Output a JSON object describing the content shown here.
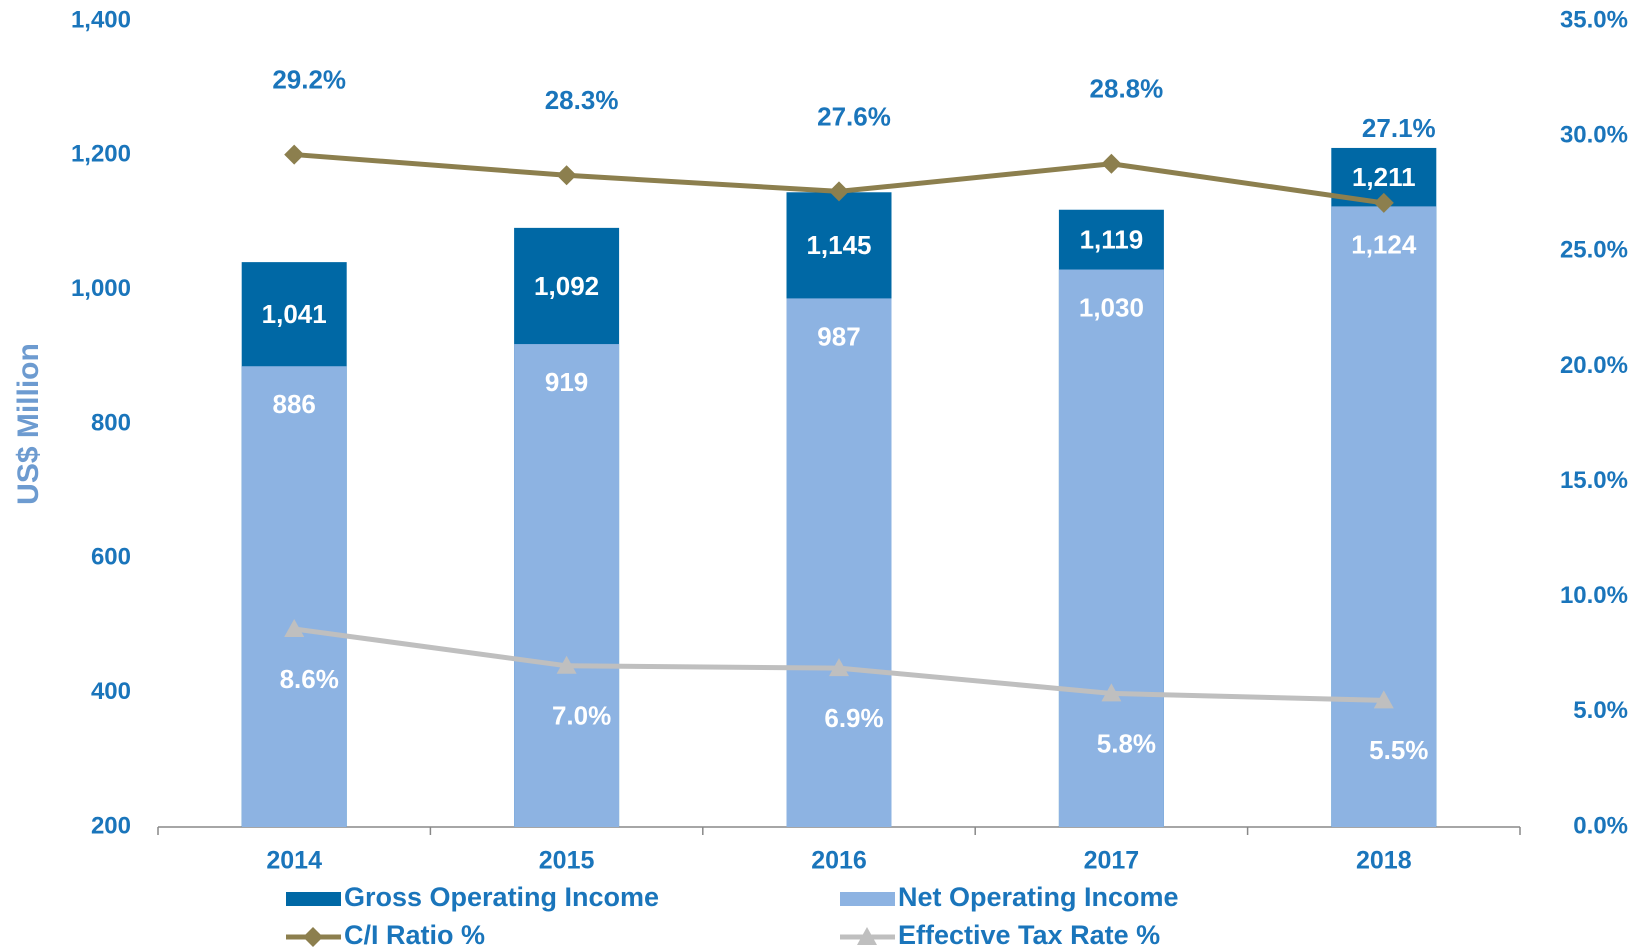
{
  "chart_data": {
    "type": "bar-line",
    "y_axis_label": "US$ Million",
    "categories": [
      "2014",
      "2015",
      "2016",
      "2017",
      "2018"
    ],
    "ylim": [
      200,
      1400
    ],
    "yticks": [
      {
        "value": 200,
        "label": "200"
      },
      {
        "value": 400,
        "label": "400"
      },
      {
        "value": 600,
        "label": "600"
      },
      {
        "value": 800,
        "label": "800"
      },
      {
        "value": 1000,
        "label": "1,000"
      },
      {
        "value": 1200,
        "label": "1,200"
      },
      {
        "value": 1400,
        "label": "1,400"
      }
    ],
    "y2lim": [
      0,
      35
    ],
    "y2ticks": [
      {
        "value": 0,
        "label": "0.0%"
      },
      {
        "value": 5,
        "label": "5.0%"
      },
      {
        "value": 10,
        "label": "10.0%"
      },
      {
        "value": 15,
        "label": "15.0%"
      },
      {
        "value": 20,
        "label": "20.0%"
      },
      {
        "value": 25,
        "label": "25.0%"
      },
      {
        "value": 30,
        "label": "30.0%"
      },
      {
        "value": 35,
        "label": "35.0%"
      }
    ],
    "series": [
      {
        "name": "Gross Operating Income",
        "type": "bar",
        "color": "#0068a5",
        "values": [
          1041,
          1092,
          1145,
          1119,
          1211
        ],
        "value_labels": [
          "1,041",
          "1,092",
          "1,145",
          "1,119",
          "1,211"
        ]
      },
      {
        "name": "Net Operating Income",
        "type": "bar",
        "color": "#8db3e2",
        "values": [
          886,
          919,
          987,
          1030,
          1124
        ],
        "value_labels": [
          "886",
          "919",
          "987",
          "1,030",
          "1,124"
        ]
      },
      {
        "name": "C/I Ratio %",
        "type": "line",
        "marker": "diamond",
        "axis": "y2",
        "color": "#8c7f4e",
        "values": [
          29.2,
          28.3,
          27.6,
          28.8,
          27.1
        ],
        "value_labels": [
          "29.2%",
          "28.3%",
          "27.6%",
          "28.8%",
          "27.1%"
        ]
      },
      {
        "name": "Effective Tax Rate %",
        "type": "line",
        "marker": "triangle",
        "axis": "y2",
        "color": "#bfbfbf",
        "values": [
          8.6,
          7.0,
          6.9,
          5.8,
          5.5
        ],
        "value_labels": [
          "8.6%",
          "7.0%",
          "6.9%",
          "5.8%",
          "5.5%"
        ]
      }
    ]
  }
}
